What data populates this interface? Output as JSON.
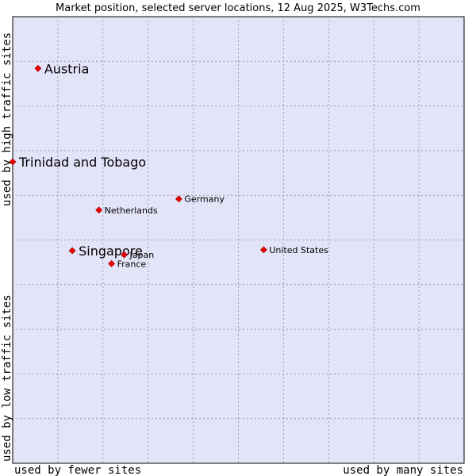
{
  "chart_data": {
    "type": "scatter",
    "title": "Market position, selected server locations, 12 Aug 2025, W3Techs.com",
    "xlabel_left": "used by fewer sites",
    "xlabel_right": "used by many sites",
    "ylabel_top": "used by high traffic sites",
    "ylabel_bottom": "used by low traffic sites",
    "x_range": [
      0,
      100
    ],
    "y_range": [
      0,
      100
    ],
    "grid": true,
    "point_color": "#ee0000",
    "plot_bg": "#e4e4f8",
    "grid_color": "#9a9ab4",
    "points": [
      {
        "label": "Austria",
        "x": 5.6,
        "y": 88.4,
        "size": "large"
      },
      {
        "label": "Trinidad and Tobago",
        "x": 0,
        "y": 67.5,
        "size": "large"
      },
      {
        "label": "Germany",
        "x": 36.8,
        "y": 59.2,
        "size": "small"
      },
      {
        "label": "Netherlands",
        "x": 19.1,
        "y": 56.7,
        "size": "small"
      },
      {
        "label": "Singapore",
        "x": 13.2,
        "y": 47.6,
        "size": "large"
      },
      {
        "label": "Japan",
        "x": 24.7,
        "y": 46.7,
        "size": "small"
      },
      {
        "label": "United States",
        "x": 55.6,
        "y": 47.8,
        "size": "small"
      },
      {
        "label": "France",
        "x": 21.9,
        "y": 44.7,
        "size": "small"
      }
    ]
  }
}
